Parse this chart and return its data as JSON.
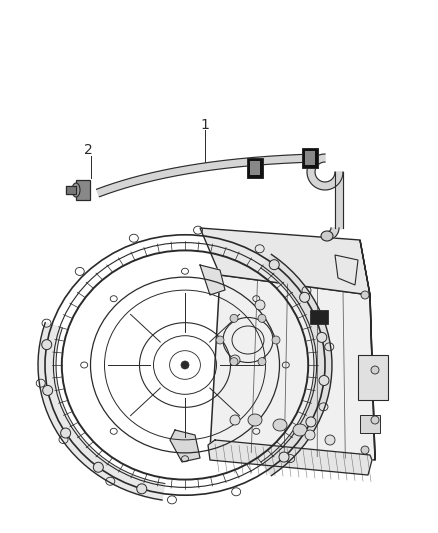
{
  "bg_color": "#ffffff",
  "line_color": "#2a2a2a",
  "label1_text": "1",
  "label2_text": "2",
  "figsize": [
    4.38,
    5.33
  ],
  "dpi": 100,
  "tube_color": "#555555",
  "clip_color": "#111111"
}
